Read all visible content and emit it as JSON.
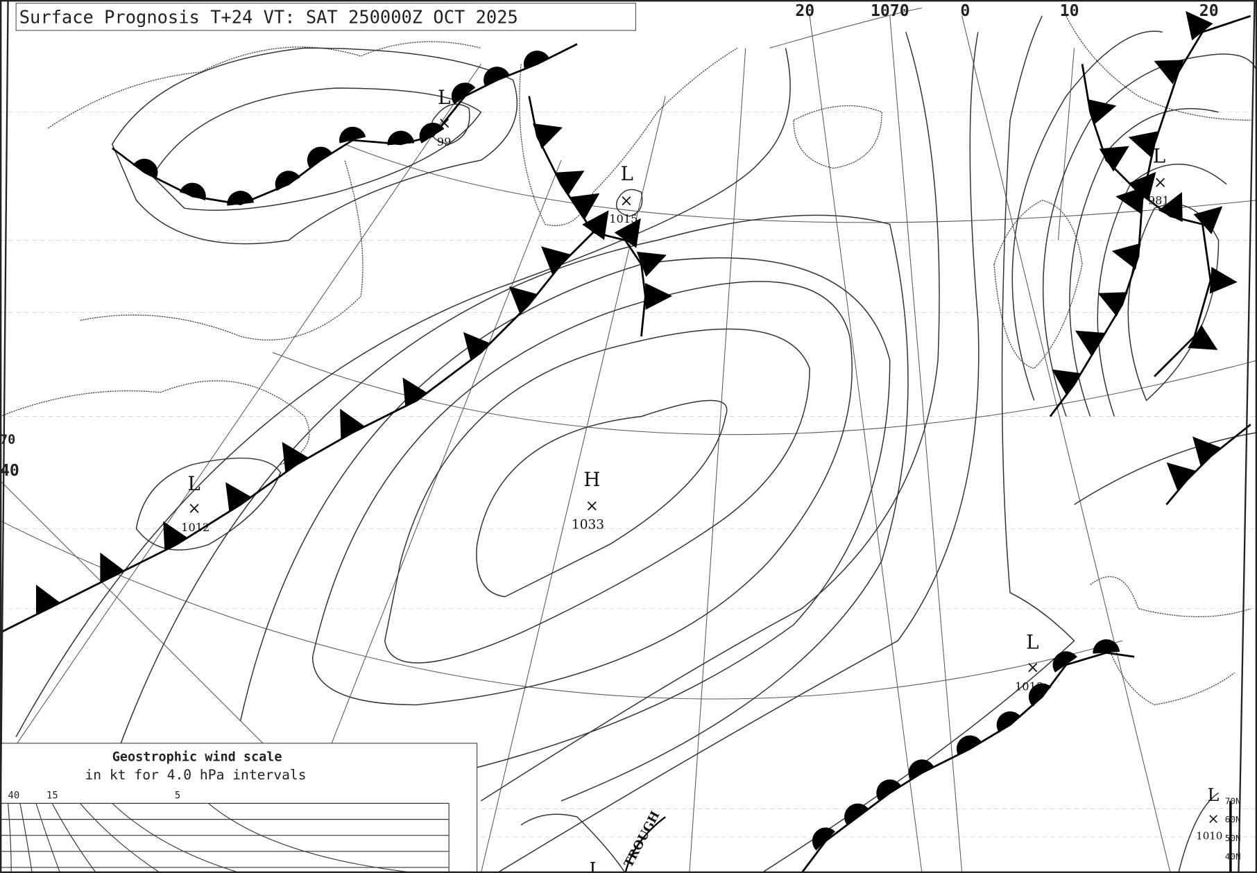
{
  "title": "Surface Prognosis T+24 VT: SAT 250000Z OCT 2025",
  "graticule_labels": {
    "top": [
      "20",
      "1070",
      "0",
      "10",
      "20"
    ],
    "left": [
      "70",
      "40"
    ],
    "right_edge": [
      "70N",
      "60N",
      "50N",
      "40N"
    ]
  },
  "pressure_centers": [
    {
      "type": "L",
      "value": "99"
    },
    {
      "type": "L",
      "value": "1015"
    },
    {
      "type": "L",
      "value": "981"
    },
    {
      "type": "L",
      "value": "1012"
    },
    {
      "type": "H",
      "value": "1033"
    },
    {
      "type": "L",
      "value": "1013"
    },
    {
      "type": "L",
      "value": "1010"
    },
    {
      "type": "L",
      "value": ""
    }
  ],
  "annotations": {
    "trough": "TROUGH"
  },
  "wind_scale": {
    "title": "Geostrophic wind scale",
    "subtitle": "in kt for 4.0 hPa intervals",
    "ticks": [
      "40",
      "15",
      "5"
    ]
  },
  "colors": {
    "ink": "#000000",
    "background": "#ffffff"
  }
}
